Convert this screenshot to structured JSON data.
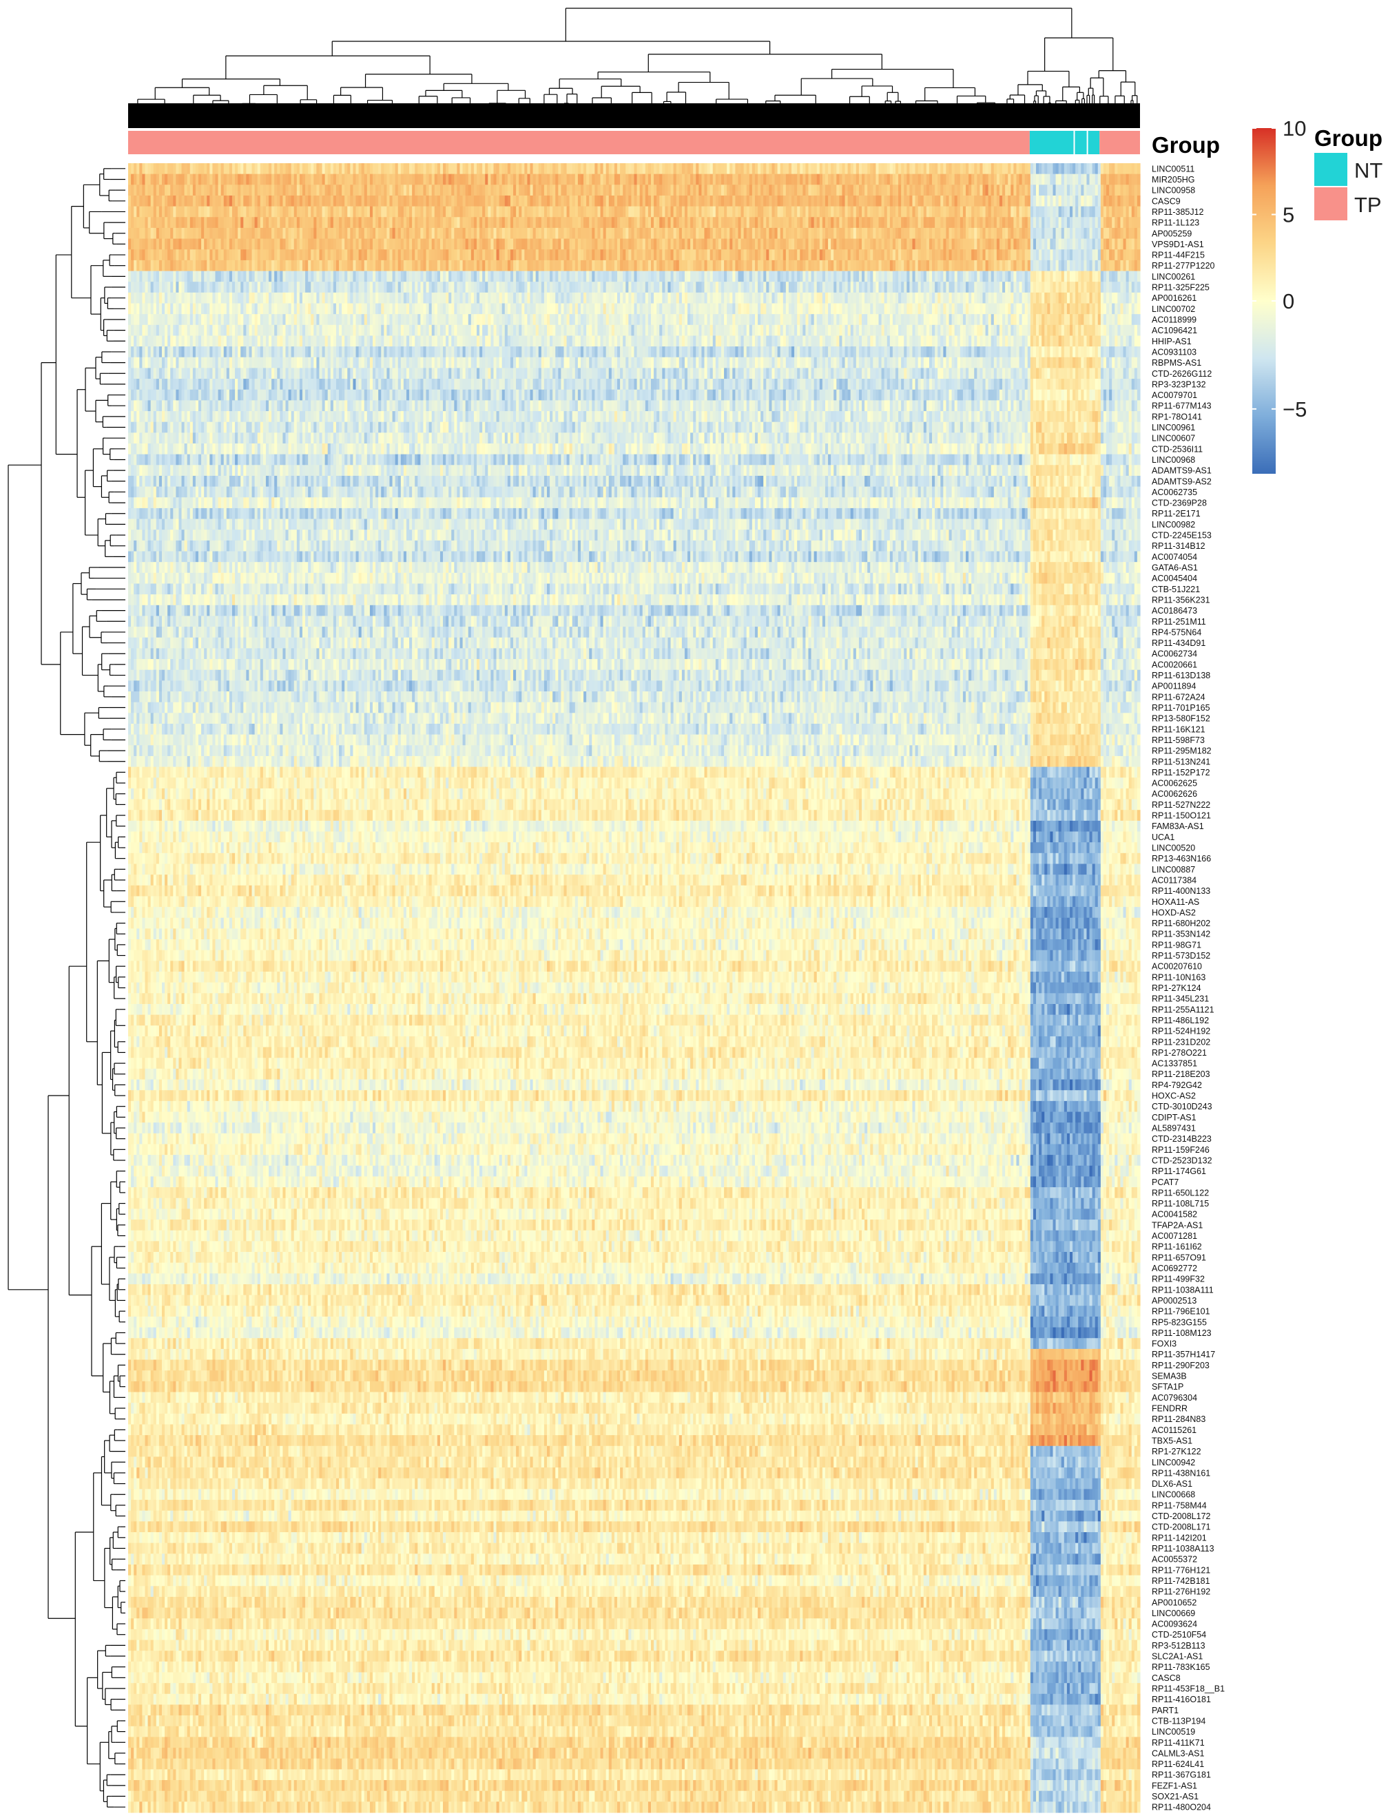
{
  "chart_data": {
    "type": "heatmap",
    "title": "",
    "xlabel": "",
    "ylabel": "",
    "column_annotation": {
      "name": "Group",
      "label": "Group",
      "levels": [
        {
          "name": "NT",
          "color": "#22D3D6"
        },
        {
          "name": "TP",
          "color": "#F8918A"
        }
      ],
      "segments": [
        {
          "group": "TP",
          "from": 0.0,
          "to": 0.891
        },
        {
          "group": "NT",
          "from": 0.891,
          "to": 0.96
        },
        {
          "group": "TP",
          "from": 0.96,
          "to": 1.0
        }
      ]
    },
    "color_scale": {
      "min": -8,
      "max": 10,
      "ticks": [
        10,
        5,
        0,
        -5
      ],
      "tick_labels": [
        "10",
        "5",
        "0",
        "−5"
      ],
      "colors": [
        "#3A6DB8",
        "#7FAEDB",
        "#CFE6F0",
        "#FFFFCC",
        "#FCD587",
        "#F5A259",
        "#D73026"
      ]
    },
    "legend": {
      "title": "Group",
      "placement": "right"
    },
    "row_labels": [
      "LINC00511",
      "MIR205HG",
      "LINC00958",
      "CASC9",
      "RP11-385J12",
      "RP11-1L123",
      "AP005259",
      "VPS9D1-AS1",
      "RP11-44F215",
      "RP11-277P1220",
      "LINC00261",
      "RP11-325F225",
      "AP0016261",
      "LINC00702",
      "AC0118999",
      "AC1096421",
      "HHIP-AS1",
      "AC0931103",
      "RBPMS-AS1",
      "CTD-2626G112",
      "RP3-323P132",
      "AC0079701",
      "RP11-677M143",
      "RP1-78O141",
      "LINC00961",
      "LINC00607",
      "CTD-2536I11",
      "LINC00968",
      "ADAMTS9-AS1",
      "ADAMTS9-AS2",
      "AC0062735",
      "CTD-2369P28",
      "RP11-2E171",
      "LINC00982",
      "CTD-2245E153",
      "RP11-314B12",
      "AC0074054",
      "GATA6-AS1",
      "AC0045404",
      "CTB-51J221",
      "RP11-356K231",
      "AC0186473",
      "RP11-251M11",
      "RP4-575N64",
      "RP11-434D91",
      "AC0062734",
      "AC0020661",
      "RP11-613D138",
      "AP0011894",
      "RP11-672A24",
      "RP11-701P165",
      "RP13-580F152",
      "RP11-16K121",
      "RP11-598F73",
      "RP11-295M182",
      "RP11-513N241",
      "RP11-152P172",
      "AC0062625",
      "AC0062626",
      "RP11-527N222",
      "RP11-150O121",
      "FAM83A-AS1",
      "UCA1",
      "LINC00520",
      "RP13-463N166",
      "LINC00887",
      "AC0117384",
      "RP11-400N133",
      "HOXA11-AS",
      "HOXD-AS2",
      "RP11-680H202",
      "RP11-353N142",
      "RP11-98G71",
      "RP11-573D152",
      "AC00207610",
      "RP11-10N163",
      "RP1-27K124",
      "RP11-345L231",
      "RP11-255A1121",
      "RP11-486L192",
      "RP11-524H192",
      "RP11-231D202",
      "RP1-278O221",
      "AC1337851",
      "RP11-218E203",
      "RP4-792G42",
      "HOXC-AS2",
      "CTD-3010D243",
      "CDIPT-AS1",
      "AL5897431",
      "CTD-2314B223",
      "RP11-159F246",
      "CTD-2523D132",
      "RP11-174G61",
      "PCAT7",
      "RP11-650L122",
      "RP11-108L715",
      "AC0041582",
      "TFAP2A-AS1",
      "AC0071281",
      "RP11-161I62",
      "RP11-657O91",
      "AC0692772",
      "RP11-499F32",
      "RP11-1038A111",
      "AP0002513",
      "RP11-796E101",
      "RP5-823G155",
      "RP11-108M123",
      "FOXI3",
      "RP11-357H1417",
      "RP11-290F203",
      "SEMA3B",
      "SFTA1P",
      "AC0796304",
      "FENDRR",
      "RP11-284N83",
      "AC0115261",
      "TBX5-AS1",
      "RP1-27K122",
      "LINC00942",
      "RP11-438N161",
      "DLX6-AS1",
      "LINC00668",
      "RP11-758M44",
      "CTD-2008L172",
      "CTD-2008L171",
      "RP11-142I201",
      "RP11-1038A113",
      "AC0055372",
      "RP11-776H121",
      "RP11-742B181",
      "RP11-276H192",
      "AP0010652",
      "LINC00669",
      "AC0093624",
      "CTD-2510F54",
      "RP3-512B113",
      "SLC2A1-AS1",
      "RP11-783K165",
      "CASC8",
      "RP11-453F18__B1",
      "RP11-416O181",
      "PART1",
      "CTB-113P194",
      "LINC00519",
      "RP11-411K71",
      "CALML3-AS1",
      "RP11-624L41",
      "RP11-367G181",
      "FEZF1-AS1",
      "SOX21-AS1",
      "RP11-480O204"
    ],
    "row_blocks": [
      {
        "from": 0,
        "to": 9,
        "tp_mean": 4.2,
        "nt_mean": -2.5
      },
      {
        "from": 10,
        "to": 55,
        "tp_mean": -1.8,
        "nt_mean": 2.0
      },
      {
        "from": 56,
        "to": 109,
        "tp_mean": 0.4,
        "nt_mean": -5.2
      },
      {
        "from": 110,
        "to": 118,
        "tp_mean": 1.8,
        "nt_mean": 5.5
      },
      {
        "from": 119,
        "to": 145,
        "tp_mean": 1.4,
        "nt_mean": -4.6
      },
      {
        "from": 146,
        "to": 155,
        "tp_mean": 2.2,
        "nt_mean": -3.4
      }
    ]
  }
}
